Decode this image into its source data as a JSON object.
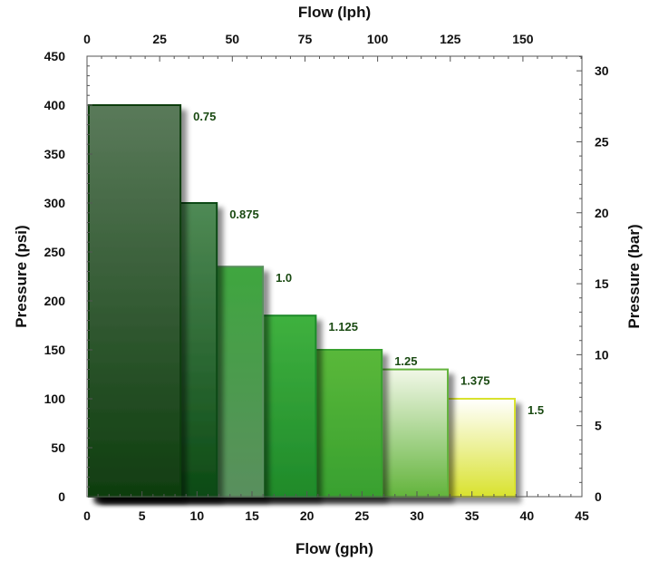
{
  "chart_data": {
    "type": "bar",
    "title": "",
    "orientation": "horizontal-stepped",
    "xlabel_bottom": "Flow (gph)",
    "xlabel_top": "Flow (lph)",
    "ylabel_left": "Pressure (psi)",
    "ylabel_right": "Pressure (bar)",
    "x_bottom": {
      "min": 0,
      "max": 45,
      "ticks": [
        0,
        5,
        10,
        15,
        20,
        25,
        30,
        35,
        40,
        45
      ]
    },
    "x_top": {
      "min": 0,
      "max": 170.3,
      "ticks": [
        0,
        25,
        50,
        75,
        100,
        125,
        150
      ]
    },
    "y_left": {
      "min": 0,
      "max": 450,
      "ticks": [
        0,
        50,
        100,
        150,
        200,
        250,
        300,
        350,
        400,
        450
      ]
    },
    "y_right": {
      "min": 0,
      "max": 31.03,
      "ticks": [
        0,
        5,
        10,
        15,
        20,
        25,
        30
      ]
    },
    "grid": false,
    "legend": "none",
    "series": [
      {
        "label": "0.75",
        "flow_gph": 8.5,
        "pressure_psi": 400
      },
      {
        "label": "0.875",
        "flow_gph": 11.8,
        "pressure_psi": 300
      },
      {
        "label": "1.0",
        "flow_gph": 16,
        "pressure_psi": 235
      },
      {
        "label": "1.125",
        "flow_gph": 20.8,
        "pressure_psi": 185
      },
      {
        "label": "1.25",
        "flow_gph": 26.8,
        "pressure_psi": 150
      },
      {
        "label": "1.375",
        "flow_gph": 32.8,
        "pressure_psi": 130
      },
      {
        "label": "1.5",
        "flow_gph": 38.9,
        "pressure_psi": 100
      }
    ],
    "colors": {
      "0.75": [
        "#5a7a5a",
        "#0f3d0f"
      ],
      "0.875": [
        "#4f8a55",
        "#0c4a14"
      ],
      "1.0": [
        "#3fa63f",
        "#5a8f5e"
      ],
      "1.125": [
        "#3fb13f",
        "#1f8a2a"
      ],
      "1.25": [
        "#5ab83a",
        "#38a02f"
      ],
      "1.375": [
        "#f1f7e7",
        "#63b43c"
      ],
      "1.5": [
        "#ffffff",
        "#d9e22e"
      ]
    }
  }
}
